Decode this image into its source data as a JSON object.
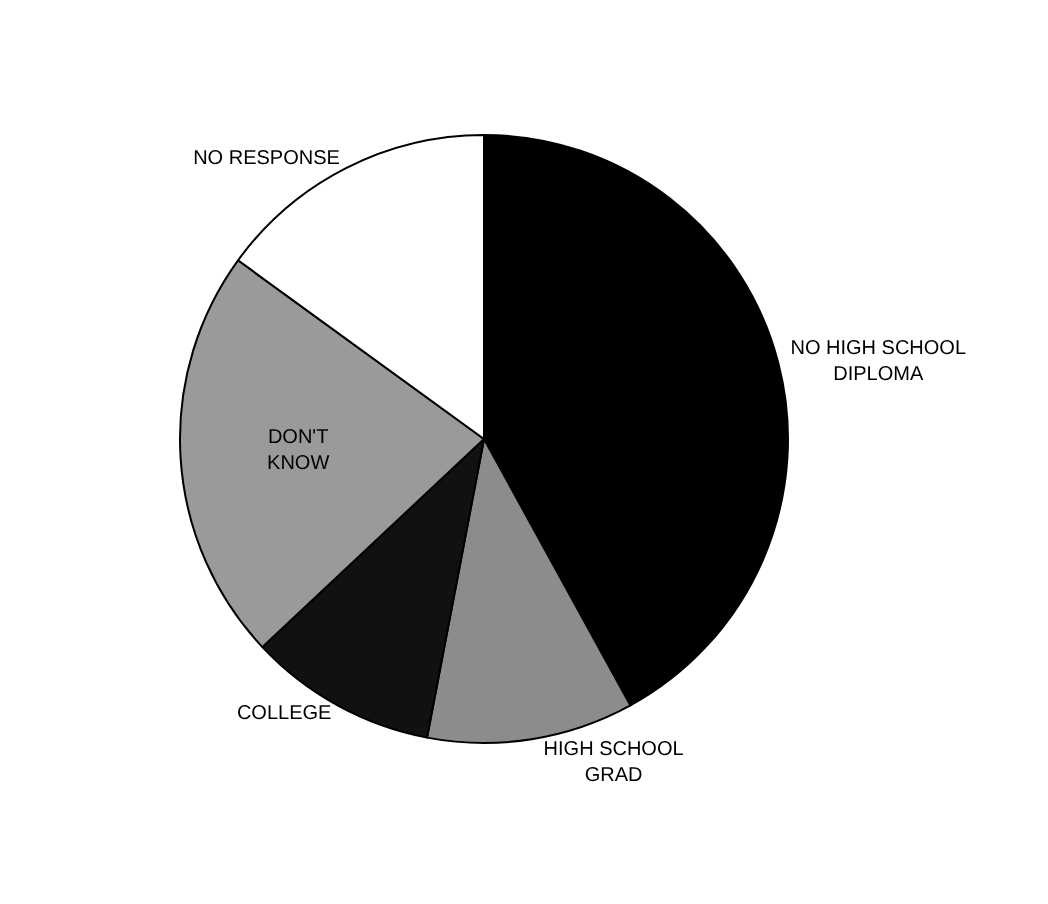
{
  "chart_data": {
    "type": "pie",
    "categories": [
      "NO HIGH SCHOOL\nDIPLOMA",
      "HIGH SCHOOL\nGRAD",
      "COLLEGE",
      "DON'T\nKNOW",
      "NO RESPONSE"
    ],
    "values": [
      42,
      11,
      10,
      22,
      15
    ],
    "colors": [
      "#000000",
      "#8c8c8c",
      "#111111",
      "#9a9a9a",
      "#ffffff"
    ],
    "legend": false
  }
}
